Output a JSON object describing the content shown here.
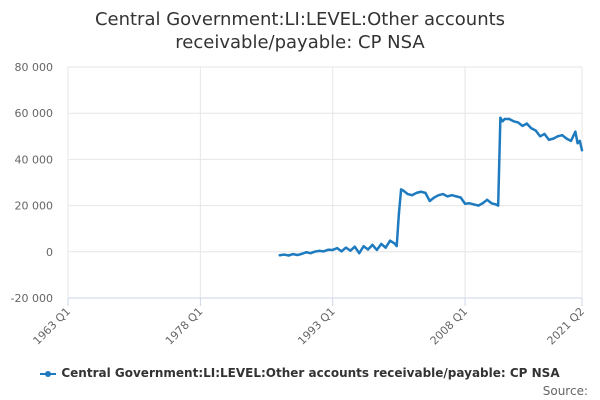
{
  "title_line1": "Central Government:LI:LEVEL:Other accounts",
  "title_line2": "receivable/payable: CP NSA",
  "legend_label": "Central Government:LI:LEVEL:Other accounts receivable/payable: CP NSA",
  "source_label": "Source:",
  "colors": {
    "series": "#1f7bbf",
    "grid": "#e6e6e6",
    "axis": "#ccd6eb"
  },
  "chart_data": {
    "type": "line",
    "title": "Central Government:LI:LEVEL:Other accounts receivable/payable: CP NSA",
    "xlabel": "",
    "ylabel": "",
    "ylim": [
      -20000,
      80000
    ],
    "yticks": [
      -20000,
      0,
      20000,
      40000,
      60000,
      80000
    ],
    "ytick_labels": [
      "-20 000",
      "0",
      "20 000",
      "40 000",
      "60 000",
      "80 000"
    ],
    "xlim": [
      "1963 Q1",
      "2021 Q2"
    ],
    "xticks": [
      "1963 Q1",
      "1978 Q1",
      "1993 Q1",
      "2008 Q1",
      "2021 Q2"
    ],
    "grid": true,
    "legend": "bottom",
    "series": [
      {
        "name": "Central Government:LI:LEVEL:Other accounts receivable/payable: CP NSA",
        "points": [
          [
            "1987 Q1",
            -1500
          ],
          [
            "1987 Q3",
            -1200
          ],
          [
            "1988 Q1",
            -1600
          ],
          [
            "1988 Q3",
            -1000
          ],
          [
            "1989 Q1",
            -1400
          ],
          [
            "1989 Q3",
            -900
          ],
          [
            "1990 Q1",
            -200
          ],
          [
            "1990 Q3",
            -600
          ],
          [
            "1991 Q1",
            100
          ],
          [
            "1991 Q3",
            400
          ],
          [
            "1992 Q1",
            200
          ],
          [
            "1992 Q3",
            900
          ],
          [
            "1993 Q1",
            800
          ],
          [
            "1993 Q3",
            1600
          ],
          [
            "1994 Q1",
            200
          ],
          [
            "1994 Q3",
            1800
          ],
          [
            "1995 Q1",
            500
          ],
          [
            "1995 Q3",
            2200
          ],
          [
            "1996 Q1",
            -600
          ],
          [
            "1996 Q3",
            2400
          ],
          [
            "1997 Q1",
            1000
          ],
          [
            "1997 Q3",
            3000
          ],
          [
            "1998 Q1",
            800
          ],
          [
            "1998 Q3",
            3400
          ],
          [
            "1999 Q1",
            1800
          ],
          [
            "1999 Q3",
            4800
          ],
          [
            "2000 Q1",
            3600
          ],
          [
            "2000 Q2",
            2500
          ],
          [
            "2000 Q3",
            16500
          ],
          [
            "2000 Q4",
            27000
          ],
          [
            "2001 Q1",
            26500
          ],
          [
            "2001 Q3",
            25000
          ],
          [
            "2002 Q1",
            24500
          ],
          [
            "2002 Q3",
            25500
          ],
          [
            "2003 Q1",
            26000
          ],
          [
            "2003 Q3",
            25500
          ],
          [
            "2004 Q1",
            22000
          ],
          [
            "2004 Q3",
            23500
          ],
          [
            "2005 Q1",
            24500
          ],
          [
            "2005 Q3",
            25000
          ],
          [
            "2006 Q1",
            24000
          ],
          [
            "2006 Q3",
            24500
          ],
          [
            "2007 Q1",
            24000
          ],
          [
            "2007 Q3",
            23500
          ],
          [
            "2008 Q1",
            20800
          ],
          [
            "2008 Q3",
            21000
          ],
          [
            "2009 Q1",
            20500
          ],
          [
            "2009 Q3",
            20000
          ],
          [
            "2010 Q1",
            21000
          ],
          [
            "2010 Q3",
            22500
          ],
          [
            "2011 Q1",
            21000
          ],
          [
            "2011 Q3",
            20500
          ],
          [
            "2011 Q4",
            20000
          ],
          [
            "2012 Q1",
            58000
          ],
          [
            "2012 Q2",
            56500
          ],
          [
            "2012 Q3",
            57500
          ],
          [
            "2013 Q1",
            57500
          ],
          [
            "2013 Q3",
            56500
          ],
          [
            "2014 Q1",
            56000
          ],
          [
            "2014 Q3",
            54500
          ],
          [
            "2015 Q1",
            55500
          ],
          [
            "2015 Q3",
            53500
          ],
          [
            "2016 Q1",
            52500
          ],
          [
            "2016 Q3",
            50000
          ],
          [
            "2017 Q1",
            51000
          ],
          [
            "2017 Q3",
            48500
          ],
          [
            "2018 Q1",
            49000
          ],
          [
            "2018 Q3",
            50000
          ],
          [
            "2019 Q1",
            50500
          ],
          [
            "2019 Q3",
            49000
          ],
          [
            "2020 Q1",
            48000
          ],
          [
            "2020 Q3",
            52000
          ],
          [
            "2020 Q4",
            47000
          ],
          [
            "2021 Q1",
            48000
          ],
          [
            "2021 Q2",
            44000
          ]
        ]
      }
    ]
  }
}
